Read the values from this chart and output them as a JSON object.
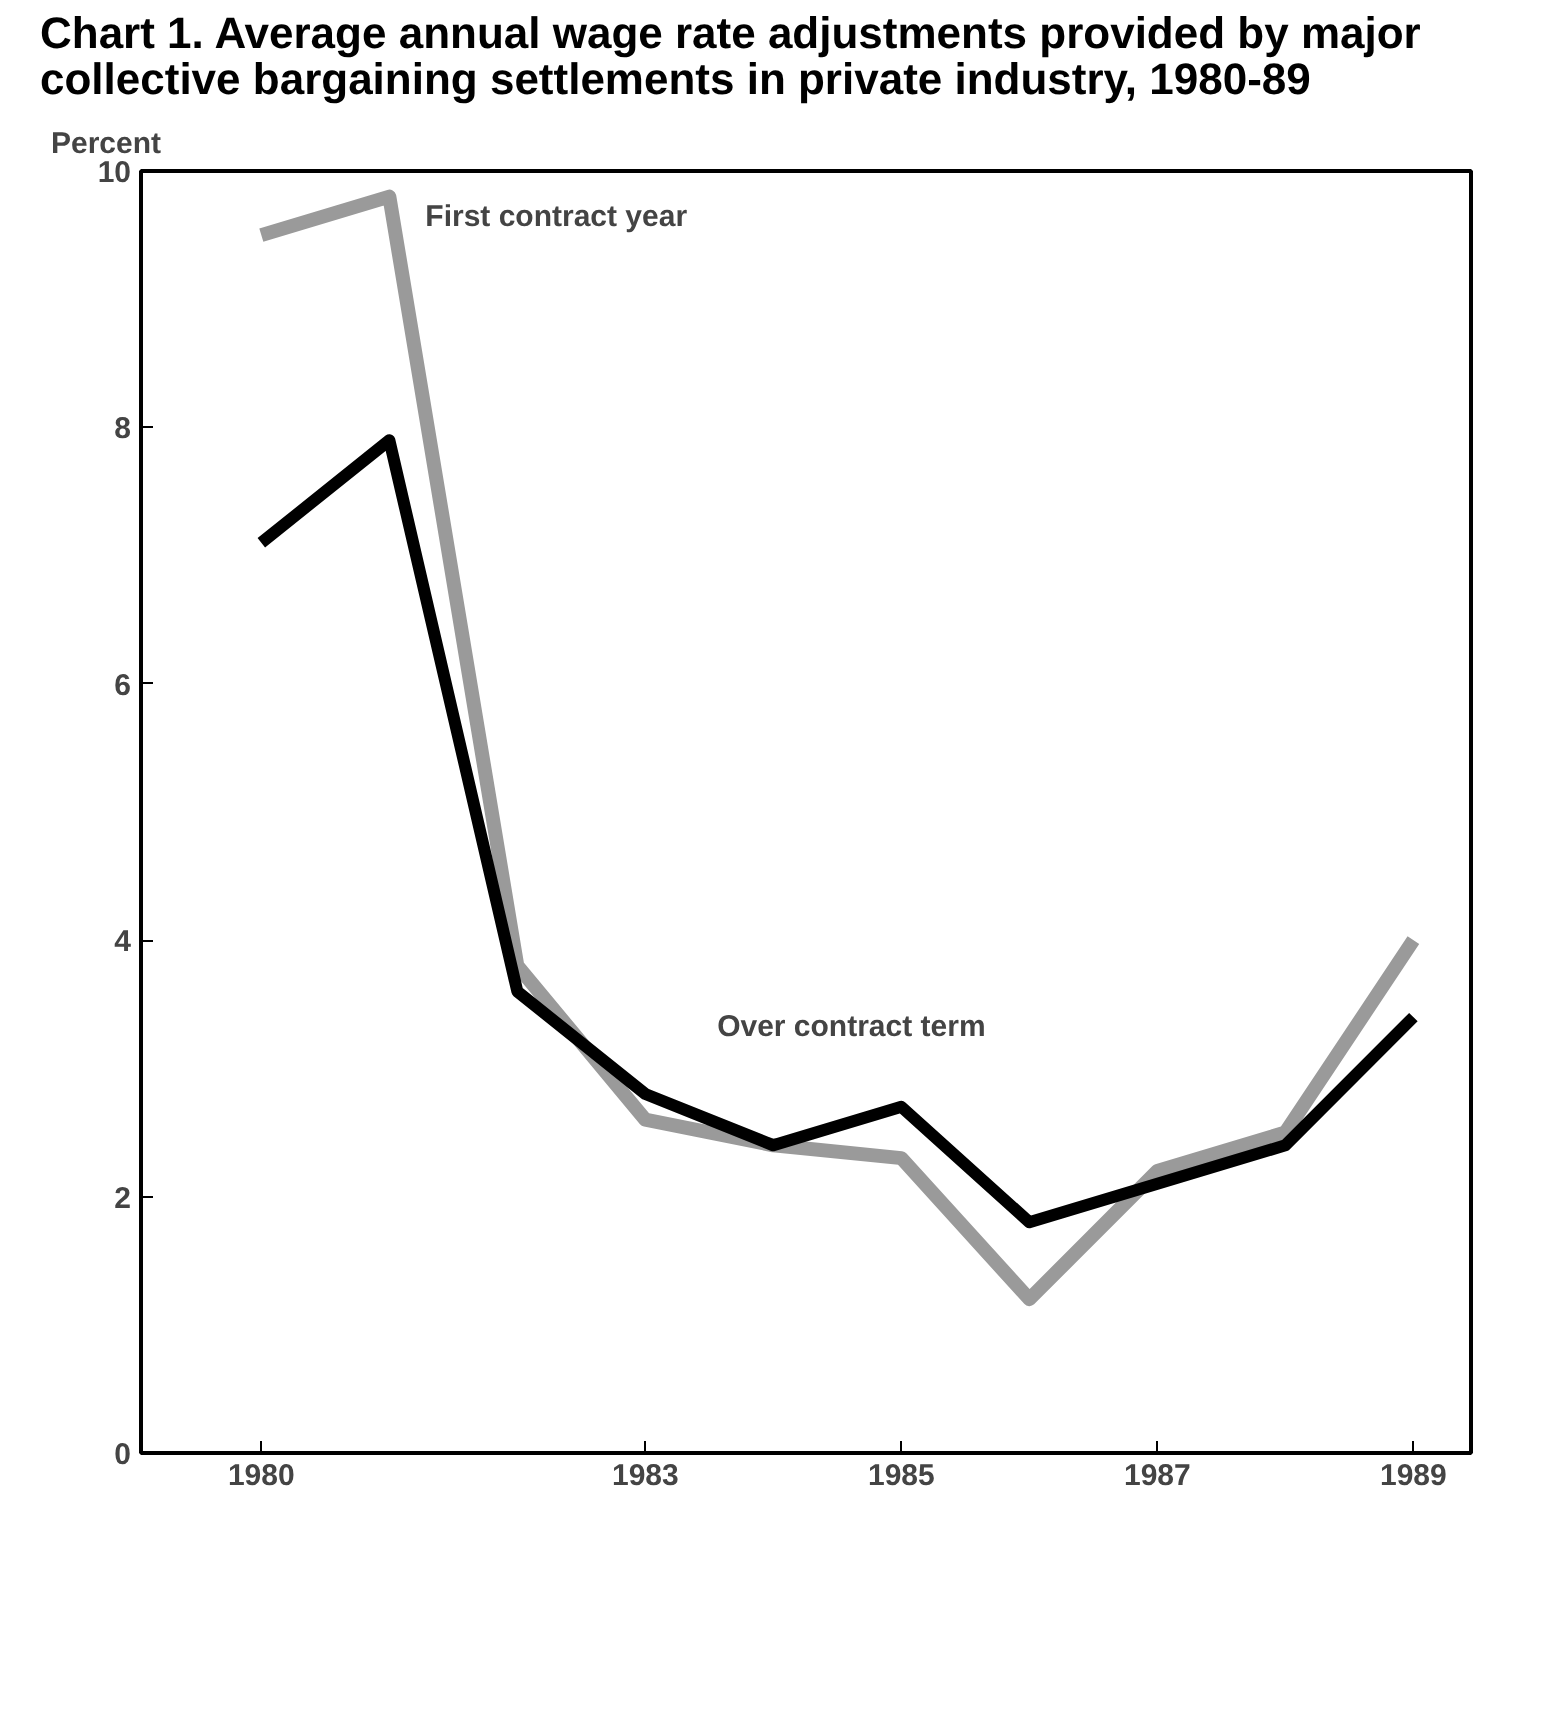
{
  "chart_data": {
    "type": "line",
    "title": "Chart 1.  Average annual wage rate adjustments provided by major collective bargaining settlements in private industry, 1980-89",
    "ylabel": "Percent",
    "x": [
      1980,
      1981,
      1982,
      1983,
      1984,
      1985,
      1986,
      1987,
      1988,
      1989
    ],
    "series": [
      {
        "name": "First contract year",
        "color": "#9a9a9a",
        "values": [
          9.5,
          9.8,
          3.8,
          2.6,
          2.4,
          2.3,
          1.2,
          2.2,
          2.5,
          4.0
        ]
      },
      {
        "name": "Over contract term",
        "color": "#000000",
        "values": [
          7.1,
          7.9,
          3.6,
          2.8,
          2.4,
          2.7,
          1.8,
          2.1,
          2.4,
          3.4
        ]
      }
    ],
    "xlim": [
      1979.06,
      1989.45
    ],
    "xticks": [
      1980,
      1983,
      1985,
      1987,
      1989
    ],
    "ylim": [
      0,
      10
    ],
    "yticks": [
      0,
      2,
      4,
      6,
      8,
      10
    ],
    "grid": false,
    "marker": "none",
    "line_style": "solid"
  }
}
